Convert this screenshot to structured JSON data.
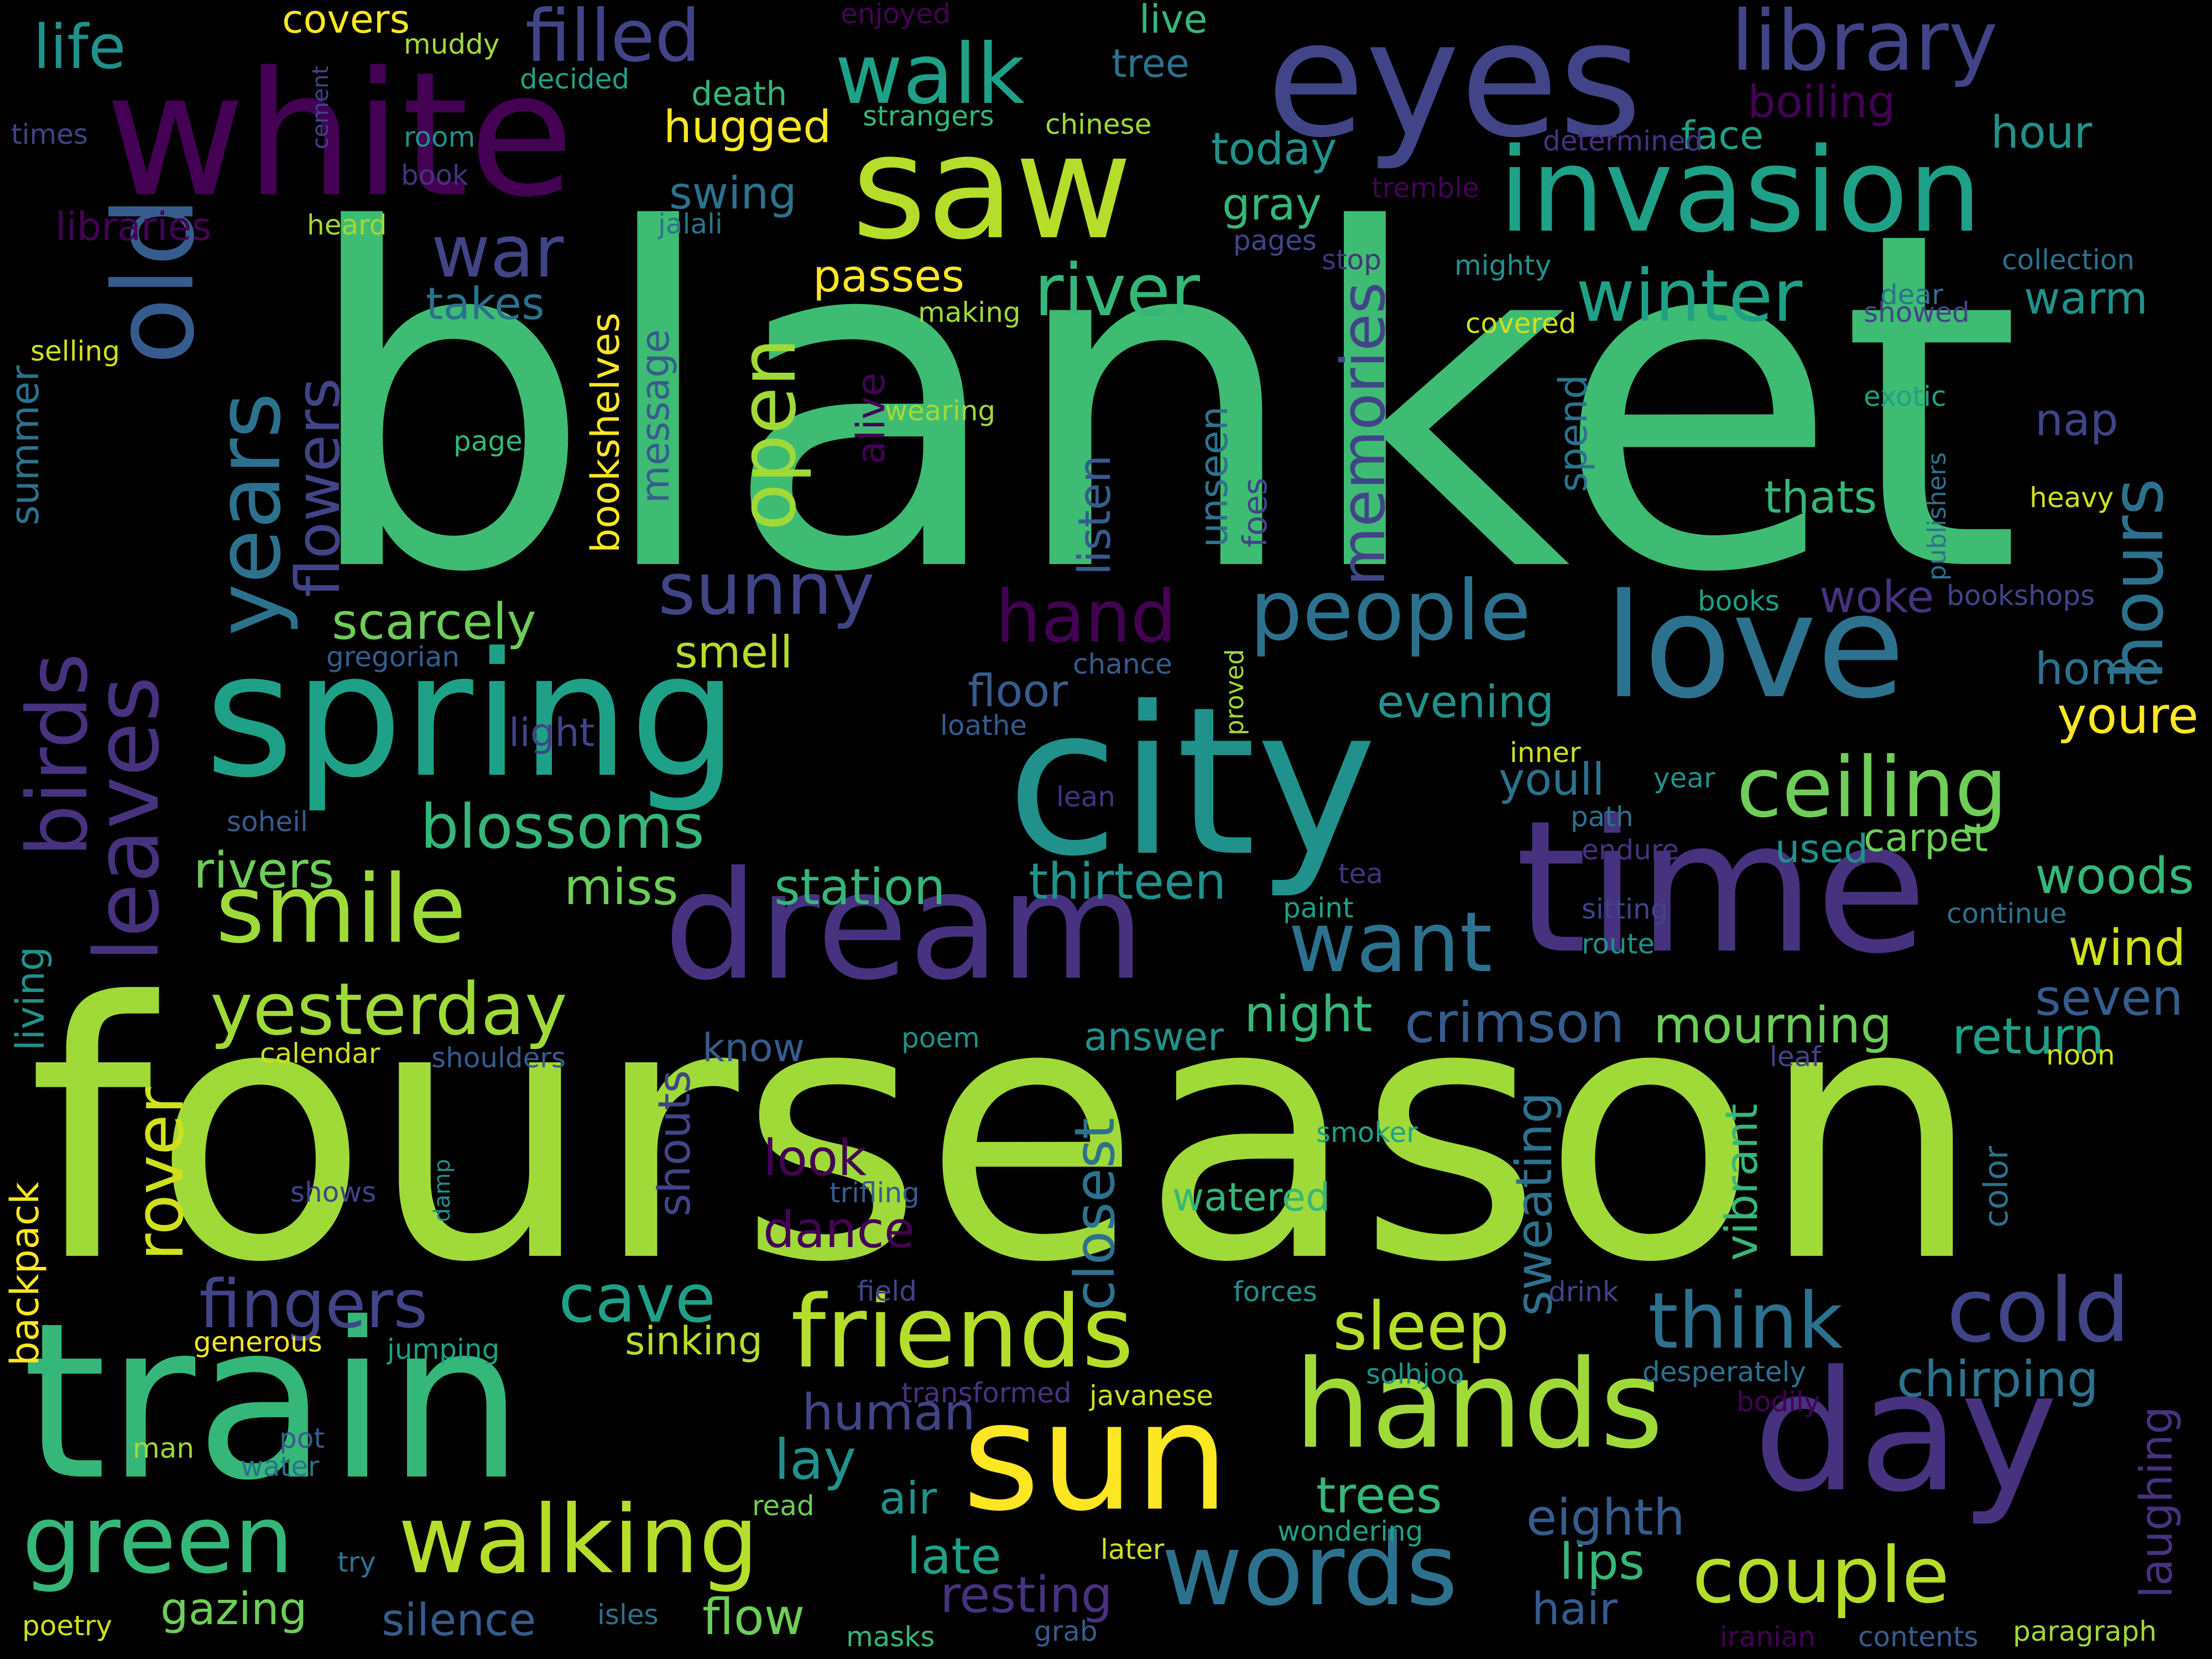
{
  "colors": {
    "background": "#000000",
    "dark_purple": "#440154",
    "purple": "#46327e",
    "slate_blue": "#414487",
    "blue": "#365c8d",
    "steel": "#2c728e",
    "teal": "#21918c",
    "teal_green": "#1fa187",
    "green": "#35b779",
    "light_green": "#6ece58",
    "lime": "#a0da39",
    "yellow_green": "#d0e11c",
    "yellow": "#fde725"
  },
  "words": {
    "blanket": "blanket",
    "fourseason": "fourseason",
    "train": "train",
    "city": "city",
    "spring": "spring",
    "time": "time",
    "dream": "dream",
    "white": "white",
    "eyes": "eyes",
    "saw": "saw",
    "invasion": "invasion",
    "love": "love",
    "day": "day",
    "sun": "sun",
    "hands": "hands",
    "friends": "friends",
    "walking": "walking",
    "words": "words",
    "green": "green",
    "smile": "smile",
    "old": "old",
    "years": "years",
    "leaves": "leaves",
    "birds": "birds",
    "walk": "walk",
    "library": "library",
    "filled": "filled",
    "people": "people",
    "ceiling": "ceiling",
    "want": "want",
    "yesterday": "yesterday",
    "think": "think",
    "cold": "cold",
    "couple": "couple",
    "hours": "hours",
    "winter": "winter",
    "river": "river",
    "war": "war",
    "life": "life",
    "blossoms": "blossoms",
    "sleep": "sleep",
    "fingers": "fingers",
    "cave": "cave",
    "crimson": "crimson",
    "memories": "memories",
    "flowers": "flowers",
    "open": "open",
    "sunny": "sunny",
    "hand": "hand",
    "scarcely": "scarcely",
    "rover": "rover",
    "closest": "closest",
    "mourning": "mourning",
    "chirping": "chirping",
    "laughing": "laughing",
    "thirteen": "thirteen",
    "station": "station",
    "rivers": "rivers",
    "miss": "miss",
    "smell": "smell",
    "gazing": "gazing",
    "silence": "silence",
    "flow": "flow",
    "resting": "resting",
    "hair": "hair",
    "lips": "lips",
    "eighth": "eighth",
    "trees": "trees",
    "late": "late",
    "lay": "lay",
    "human": "human",
    "sinking": "sinking",
    "air": "air",
    "dance": "dance",
    "look": "look",
    "watered": "watered",
    "sweating": "sweating",
    "vibrant": "vibrant",
    "shouts": "shouts",
    "know": "know",
    "answer": "answer",
    "night": "night",
    "return": "return",
    "seven": "seven",
    "wind": "wind",
    "woods": "woods",
    "carpet": "carpet",
    "used": "used",
    "youll": "youll",
    "evening": "evening",
    "floor": "floor",
    "light": "light",
    "woke": "woke",
    "home": "home",
    "youre": "youre",
    "thats": "thats",
    "nap": "nap",
    "warm": "warm",
    "hour": "hour",
    "face": "face",
    "today": "today",
    "gray": "gray",
    "swing": "swing",
    "hugged": "hugged",
    "death": "death",
    "covers": "covers",
    "live": "live",
    "tree": "tree",
    "boiling": "boiling",
    "passes": "passes",
    "takes": "takes",
    "bookshelves": "bookshelves",
    "message": "message",
    "alive": "alive",
    "listen": "listen",
    "unseen": "unseen",
    "foes": "foes",
    "spend": "spend",
    "libraries": "libraries",
    "summer": "summer",
    "living": "living",
    "backpack": "backpack",
    "color": "color",
    "muddy": "muddy",
    "decided": "decided",
    "enjoyed": "enjoyed",
    "cement": "cement",
    "times": "times",
    "room": "room",
    "book": "book",
    "heard": "heard",
    "jalali": "jalali",
    "strangers": "strangers",
    "chinese": "chinese",
    "determined": "determined",
    "tremble": "tremble",
    "pages": "pages",
    "stop": "stop",
    "mighty": "mighty",
    "collection": "collection",
    "dear": "dear",
    "showed": "showed",
    "selling": "selling",
    "making": "making",
    "covered": "covered",
    "exotic": "exotic",
    "publishers": "publishers",
    "wearing": "wearing",
    "page": "page",
    "heavy": "heavy",
    "books": "books",
    "bookshops": "bookshops",
    "gregorian": "gregorian",
    "chance": "chance",
    "proved": "proved",
    "loathe": "loathe",
    "inner": "inner",
    "year": "year",
    "path": "path",
    "lean": "lean",
    "soheil": "soheil",
    "endure": "endure",
    "tea": "tea",
    "paint": "paint",
    "sitting": "sitting",
    "route": "route",
    "continue": "continue",
    "calendar": "calendar",
    "shoulders": "shoulders",
    "poem": "poem",
    "leaf": "leaf",
    "noon": "noon",
    "smoker": "smoker",
    "shows": "shows",
    "damp": "damp",
    "trifling": "trifling",
    "field": "field",
    "forces": "forces",
    "drink": "drink",
    "generous": "generous",
    "jumping": "jumping",
    "solhjoo": "solhjoo",
    "desperately": "desperately",
    "transformed": "transformed",
    "javanese": "javanese",
    "bodily": "bodily",
    "man": "man",
    "pot": "pot",
    "water": "water",
    "read": "read",
    "try": "try",
    "later": "later",
    "wondering": "wondering",
    "poetry": "poetry",
    "isles": "isles",
    "masks": "masks",
    "grab": "grab",
    "iranian": "iranian",
    "contents": "contents",
    "paragraph": "paragraph"
  }
}
